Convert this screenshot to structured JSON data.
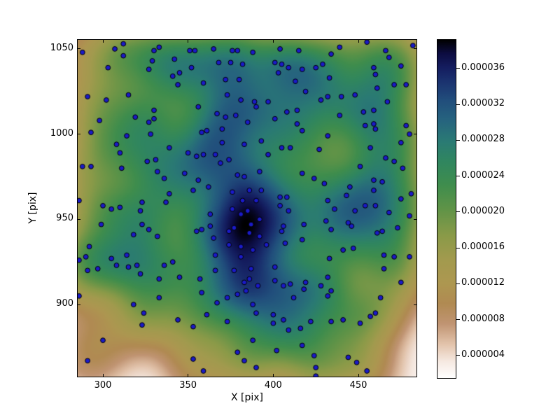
{
  "figure": {
    "background": "#ffffff"
  },
  "chart_data": {
    "type": "scatter",
    "title": "",
    "xlabel": "X [pix]",
    "ylabel": "Y [pix]",
    "xlim": [
      285.2,
      484.1
    ],
    "ylim": [
      857.7,
      1055.3
    ],
    "grid": false,
    "x_ticks": [
      {
        "value": 300,
        "label": "300"
      },
      {
        "value": 350,
        "label": "350"
      },
      {
        "value": 400,
        "label": "400"
      },
      {
        "value": 450,
        "label": "450"
      }
    ],
    "y_ticks": [
      {
        "value": 900,
        "label": "900"
      },
      {
        "value": 950,
        "label": "950"
      },
      {
        "value": 1000,
        "label": "1000"
      },
      {
        "value": 1050,
        "label": "1050"
      }
    ],
    "marker": {
      "fill_color": "#1a1ac8",
      "edge_color": "#000000",
      "radius_px": 3.4
    },
    "background_field": {
      "kind": "kernel-density-of-points",
      "colormap": "gist_earth_r",
      "bandwidth_data_units": 13,
      "peak_location": {
        "x": 386,
        "y": 946
      }
    },
    "colorbar": {
      "range": [
        1.5e-06,
        3.92e-05
      ],
      "ticks": [
        {
          "value": 3.6e-05,
          "label": "0.000036"
        },
        {
          "value": 3.2e-05,
          "label": "0.000032"
        },
        {
          "value": 2.8e-05,
          "label": "0.000028"
        },
        {
          "value": 2.4e-05,
          "label": "0.000024"
        },
        {
          "value": 2e-05,
          "label": "0.000020"
        },
        {
          "value": 1.6e-05,
          "label": "0.000016"
        },
        {
          "value": 1.2e-05,
          "label": "0.000012"
        },
        {
          "value": 8e-06,
          "label": "0.000008"
        },
        {
          "value": 4e-06,
          "label": "0.000004"
        }
      ]
    },
    "colormap_stops": [
      {
        "t": 0.0,
        "color": "#ffffff"
      },
      {
        "t": 0.05,
        "color": "#f5e8e0"
      },
      {
        "t": 0.1,
        "color": "#e2c3ab"
      },
      {
        "t": 0.16,
        "color": "#c09472"
      },
      {
        "t": 0.22,
        "color": "#b08a52"
      },
      {
        "t": 0.28,
        "color": "#ad9750"
      },
      {
        "t": 0.35,
        "color": "#a29a4e"
      },
      {
        "t": 0.42,
        "color": "#8a9a48"
      },
      {
        "t": 0.5,
        "color": "#5f9347"
      },
      {
        "t": 0.57,
        "color": "#3f8d4d"
      },
      {
        "t": 0.64,
        "color": "#30865f"
      },
      {
        "t": 0.7,
        "color": "#2a7a74"
      },
      {
        "t": 0.76,
        "color": "#26647e"
      },
      {
        "t": 0.82,
        "color": "#214e7c"
      },
      {
        "t": 0.88,
        "color": "#1a306e"
      },
      {
        "t": 0.92,
        "color": "#141c5e"
      },
      {
        "t": 0.96,
        "color": "#0c0c40"
      },
      {
        "t": 1.0,
        "color": "#000000"
      }
    ],
    "points": [
      [
        288,
        1048
      ],
      [
        307,
        1050
      ],
      [
        333,
        1051
      ],
      [
        330,
        1049
      ],
      [
        351,
        1049
      ],
      [
        354,
        1049
      ],
      [
        365,
        1050
      ],
      [
        376,
        1049
      ],
      [
        379,
        1049
      ],
      [
        312,
        1046
      ],
      [
        329,
        1043
      ],
      [
        342,
        1044
      ],
      [
        368,
        1042
      ],
      [
        375,
        1042
      ],
      [
        382,
        1041
      ],
      [
        312,
        1053
      ],
      [
        303,
        1039
      ],
      [
        327,
        1038
      ],
      [
        352,
        1039
      ],
      [
        341,
        1034
      ],
      [
        345,
        1036
      ],
      [
        359,
        1030
      ],
      [
        372,
        1032
      ],
      [
        380,
        1032
      ],
      [
        344,
        1029
      ],
      [
        291,
        1022
      ],
      [
        302,
        1020
      ],
      [
        315,
        1023
      ],
      [
        373,
        1023
      ],
      [
        381,
        1020
      ],
      [
        356,
        1016
      ],
      [
        330,
        1014
      ],
      [
        298,
        1008
      ],
      [
        319,
        1010
      ],
      [
        327,
        1007
      ],
      [
        330,
        1009
      ],
      [
        367,
        1012
      ],
      [
        372,
        1010
      ],
      [
        378,
        1011
      ],
      [
        385,
        1007
      ],
      [
        293,
        1001
      ],
      [
        314,
        999
      ],
      [
        328,
        1000
      ],
      [
        358,
        1001
      ],
      [
        361,
        1002
      ],
      [
        370,
        1003
      ],
      [
        370,
        995
      ],
      [
        383,
        994
      ],
      [
        308,
        994
      ],
      [
        310,
        989
      ],
      [
        339,
        992
      ],
      [
        350,
        989
      ],
      [
        355,
        987
      ],
      [
        359,
        988
      ],
      [
        366,
        988
      ],
      [
        374,
        985
      ],
      [
        369,
        983
      ],
      [
        288,
        981
      ],
      [
        293,
        981
      ],
      [
        311,
        980
      ],
      [
        326,
        984
      ],
      [
        331,
        985
      ],
      [
        332,
        978
      ],
      [
        336,
        974
      ],
      [
        348,
        977
      ],
      [
        356,
        973
      ],
      [
        362,
        969
      ],
      [
        379,
        976
      ],
      [
        383,
        975
      ],
      [
        353,
        967
      ],
      [
        376,
        966
      ],
      [
        382,
        961
      ],
      [
        339,
        965
      ],
      [
        323,
        960
      ],
      [
        300,
        958
      ],
      [
        305,
        956
      ],
      [
        310,
        957
      ],
      [
        322,
        955
      ],
      [
        337,
        960
      ],
      [
        286,
        961
      ],
      [
        376,
        956
      ],
      [
        439,
        1051
      ],
      [
        455,
        1054
      ],
      [
        482,
        1052
      ],
      [
        388,
        1048
      ],
      [
        404,
        1050
      ],
      [
        415,
        1049
      ],
      [
        434,
        1047
      ],
      [
        466,
        1049
      ],
      [
        468,
        1045
      ],
      [
        401,
        1042
      ],
      [
        405,
        1041
      ],
      [
        409,
        1039
      ],
      [
        417,
        1038
      ],
      [
        425,
        1039
      ],
      [
        429,
        1041
      ],
      [
        403,
        1036
      ],
      [
        433,
        1033
      ],
      [
        459,
        1039
      ],
      [
        460,
        1035
      ],
      [
        475,
        1040
      ],
      [
        413,
        1031
      ],
      [
        471,
        1029
      ],
      [
        478,
        1029
      ],
      [
        461,
        1027
      ],
      [
        419,
        1025
      ],
      [
        428,
        1020
      ],
      [
        432,
        1022
      ],
      [
        440,
        1022
      ],
      [
        448,
        1023
      ],
      [
        389,
        1019
      ],
      [
        390,
        1016
      ],
      [
        397,
        1019
      ],
      [
        467,
        1019
      ],
      [
        408,
        1013
      ],
      [
        414,
        1014
      ],
      [
        401,
        1009
      ],
      [
        439,
        1011
      ],
      [
        453,
        1013
      ],
      [
        459,
        1014
      ],
      [
        414,
        1006
      ],
      [
        417,
        1002
      ],
      [
        454,
        1005
      ],
      [
        459,
        1006
      ],
      [
        460,
        1003
      ],
      [
        478,
        1005
      ],
      [
        480,
        1000
      ],
      [
        432,
        999
      ],
      [
        393,
        996
      ],
      [
        475,
        995
      ],
      [
        405,
        992
      ],
      [
        410,
        992
      ],
      [
        427,
        991
      ],
      [
        457,
        992
      ],
      [
        397,
        988
      ],
      [
        466,
        986
      ],
      [
        471,
        984
      ],
      [
        476,
        980
      ],
      [
        392,
        978
      ],
      [
        417,
        977
      ],
      [
        424,
        974
      ],
      [
        430,
        971
      ],
      [
        451,
        981
      ],
      [
        459,
        973
      ],
      [
        464,
        972
      ],
      [
        445,
        969
      ],
      [
        459,
        967
      ],
      [
        386,
        967
      ],
      [
        390,
        961
      ],
      [
        404,
        963
      ],
      [
        408,
        963
      ],
      [
        404,
        958
      ],
      [
        432,
        961
      ],
      [
        443,
        964
      ],
      [
        475,
        962
      ],
      [
        481,
        965
      ],
      [
        454,
        958
      ],
      [
        460,
        958
      ],
      [
        436,
        956
      ],
      [
        409,
        955
      ],
      [
        299,
        947
      ],
      [
        323,
        947
      ],
      [
        327,
        944
      ],
      [
        318,
        941
      ],
      [
        332,
        940
      ],
      [
        363,
        953
      ],
      [
        385,
        955
      ],
      [
        358,
        944
      ],
      [
        363,
        946
      ],
      [
        355,
        943
      ],
      [
        374,
        943
      ],
      [
        365,
        939
      ],
      [
        374,
        935
      ],
      [
        381,
        934
      ],
      [
        292,
        934
      ],
      [
        290,
        928
      ],
      [
        286,
        926
      ],
      [
        305,
        927
      ],
      [
        314,
        929
      ],
      [
        308,
        923
      ],
      [
        297,
        921
      ],
      [
        291,
        920
      ],
      [
        315,
        922
      ],
      [
        320,
        923
      ],
      [
        322,
        918
      ],
      [
        336,
        923
      ],
      [
        341,
        925
      ],
      [
        345,
        916
      ],
      [
        333,
        915
      ],
      [
        366,
        929
      ],
      [
        366,
        920
      ],
      [
        377,
        920
      ],
      [
        357,
        915
      ],
      [
        358,
        907
      ],
      [
        286,
        905
      ],
      [
        333,
        904
      ],
      [
        318,
        900
      ],
      [
        324,
        895
      ],
      [
        323,
        888
      ],
      [
        344,
        891
      ],
      [
        353,
        887
      ],
      [
        361,
        894
      ],
      [
        373,
        890
      ],
      [
        367,
        901
      ],
      [
        373,
        904
      ],
      [
        379,
        906
      ],
      [
        383,
        913
      ],
      [
        384,
        908
      ],
      [
        300,
        879
      ],
      [
        291,
        867
      ],
      [
        353,
        868
      ],
      [
        379,
        872
      ],
      [
        383,
        867
      ],
      [
        359,
        861
      ],
      [
        448,
        955
      ],
      [
        468,
        954
      ],
      [
        480,
        952
      ],
      [
        392,
        950
      ],
      [
        387,
        947
      ],
      [
        386,
        942
      ],
      [
        406,
        946
      ],
      [
        405,
        943
      ],
      [
        418,
        947
      ],
      [
        431,
        949
      ],
      [
        434,
        944
      ],
      [
        444,
        948
      ],
      [
        446,
        946
      ],
      [
        461,
        942
      ],
      [
        464,
        943
      ],
      [
        473,
        945
      ],
      [
        417,
        938
      ],
      [
        407,
        936
      ],
      [
        396,
        935
      ],
      [
        388,
        932
      ],
      [
        441,
        932
      ],
      [
        447,
        933
      ],
      [
        433,
        927
      ],
      [
        465,
        929
      ],
      [
        471,
        928
      ],
      [
        480,
        928
      ],
      [
        465,
        921
      ],
      [
        387,
        921
      ],
      [
        386,
        915
      ],
      [
        401,
        922
      ],
      [
        391,
        911
      ],
      [
        401,
        914
      ],
      [
        406,
        911
      ],
      [
        410,
        912
      ],
      [
        419,
        913
      ],
      [
        418,
        909
      ],
      [
        428,
        911
      ],
      [
        432,
        916
      ],
      [
        434,
        908
      ],
      [
        432,
        905
      ],
      [
        412,
        904
      ],
      [
        475,
        913
      ],
      [
        463,
        904
      ],
      [
        388,
        900
      ],
      [
        390,
        895
      ],
      [
        400,
        894
      ],
      [
        400,
        889
      ],
      [
        406,
        891
      ],
      [
        409,
        885
      ],
      [
        416,
        886
      ],
      [
        422,
        890
      ],
      [
        434,
        890
      ],
      [
        441,
        891
      ],
      [
        451,
        889
      ],
      [
        457,
        893
      ],
      [
        460,
        895
      ],
      [
        388,
        879
      ],
      [
        402,
        873
      ],
      [
        417,
        876
      ],
      [
        424,
        870
      ],
      [
        425,
        863
      ],
      [
        425,
        858
      ],
      [
        444,
        869
      ],
      [
        449,
        866
      ],
      [
        455,
        861
      ],
      [
        390,
        863
      ],
      [
        393,
        967
      ],
      [
        381,
        953
      ],
      [
        392,
        940
      ],
      [
        377,
        945
      ],
      [
        381,
        928
      ]
    ]
  }
}
